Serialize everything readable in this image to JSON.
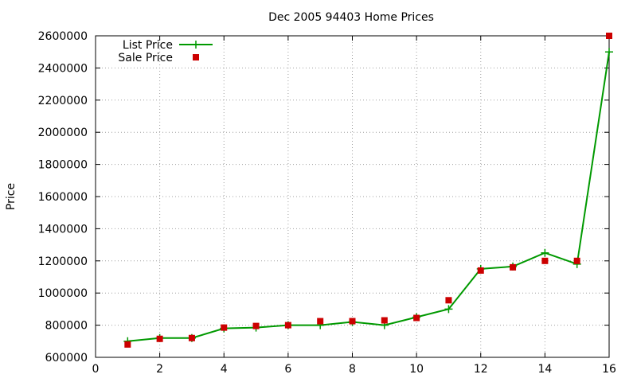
{
  "chart_data": {
    "type": "line",
    "title": "Dec 2005 94403 Home Prices",
    "xlabel": "",
    "ylabel": "Price",
    "xlim": [
      0,
      16
    ],
    "ylim": [
      600000,
      2600000
    ],
    "x_ticks": [
      0,
      2,
      4,
      6,
      8,
      10,
      12,
      14,
      16
    ],
    "y_ticks": [
      600000,
      800000,
      1000000,
      1200000,
      1400000,
      1600000,
      1800000,
      2000000,
      2200000,
      2400000,
      2600000
    ],
    "grid": true,
    "legend_position": "top-left",
    "series": [
      {
        "name": "List Price",
        "style": "line-with-plus-markers",
        "color": "#009900",
        "x": [
          1,
          2,
          3,
          4,
          5,
          6,
          7,
          8,
          9,
          10,
          11,
          12,
          13,
          14,
          15,
          16
        ],
        "values": [
          700000,
          720000,
          720000,
          780000,
          785000,
          800000,
          800000,
          820000,
          800000,
          850000,
          900000,
          1150000,
          1165000,
          1250000,
          1180000,
          2500000
        ]
      },
      {
        "name": "Sale Price",
        "style": "square-markers",
        "color": "#cc0000",
        "x": [
          1,
          2,
          3,
          4,
          5,
          6,
          7,
          8,
          9,
          10,
          11,
          12,
          13,
          14,
          15,
          16
        ],
        "values": [
          680000,
          715000,
          720000,
          785000,
          795000,
          800000,
          825000,
          825000,
          830000,
          845000,
          955000,
          1140000,
          1160000,
          1200000,
          1200000,
          2600000
        ]
      }
    ]
  }
}
